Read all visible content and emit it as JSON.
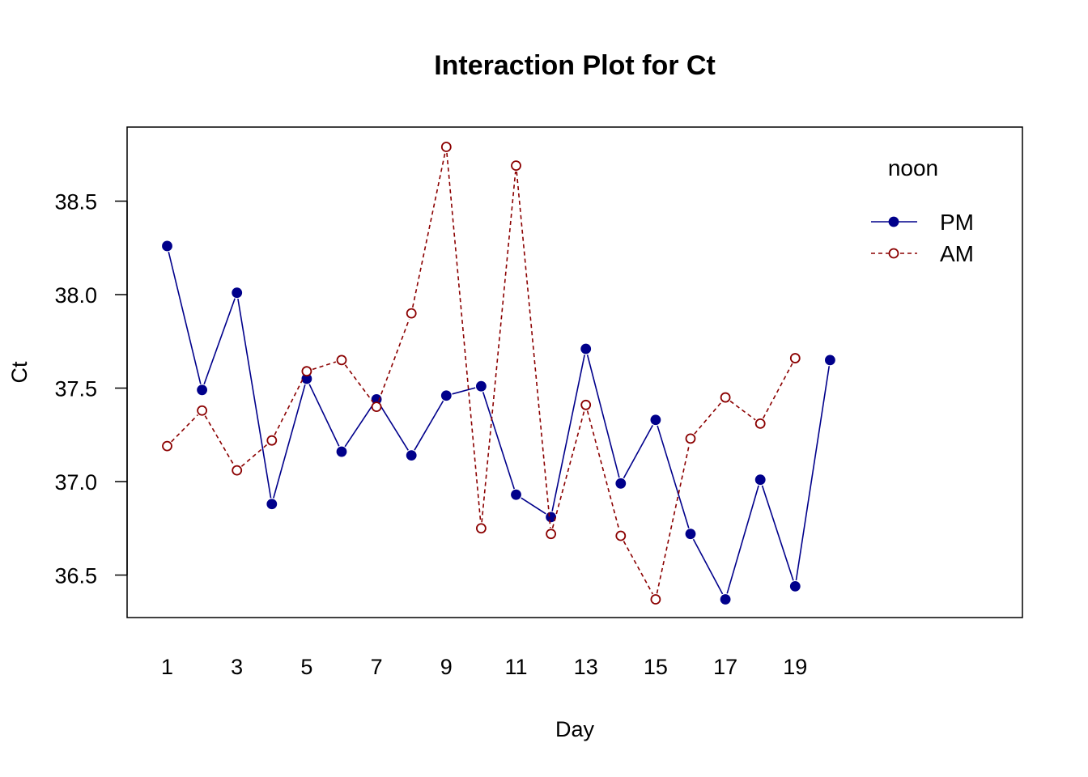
{
  "chart_data": {
    "type": "line",
    "title": "Interaction Plot for Ct",
    "xlabel": "Day",
    "ylabel": "Ct",
    "x": [
      1,
      2,
      3,
      4,
      5,
      6,
      7,
      8,
      9,
      10,
      11,
      12,
      13,
      14,
      15,
      16,
      17,
      18,
      19,
      20
    ],
    "x_tick_labels": [
      "1",
      "3",
      "5",
      "7",
      "9",
      "11",
      "13",
      "15",
      "17",
      "19"
    ],
    "y_ticks": [
      "36.5",
      "37.0",
      "37.5",
      "38.0",
      "38.5"
    ],
    "ylim": [
      36.35,
      38.85
    ],
    "xlim": [
      0,
      26
    ],
    "grid": false,
    "legend": {
      "title": "noon",
      "placement": "top-right"
    },
    "series": [
      {
        "name": "PM",
        "color": "#00008B",
        "line_style": "solid",
        "marker": "filled-circle",
        "values": [
          38.26,
          37.49,
          38.01,
          36.88,
          37.55,
          37.16,
          37.44,
          37.14,
          37.46,
          37.51,
          36.93,
          36.81,
          37.71,
          36.99,
          37.33,
          36.72,
          36.37,
          37.01,
          36.44,
          37.65
        ]
      },
      {
        "name": "AM",
        "color": "#8B0000",
        "line_style": "dashed",
        "marker": "open-circle",
        "values": [
          37.19,
          37.38,
          37.06,
          37.22,
          37.59,
          37.65,
          37.4,
          37.9,
          38.79,
          36.75,
          38.69,
          36.72,
          37.41,
          36.71,
          36.37,
          37.23,
          37.45,
          37.31,
          37.66,
          null
        ]
      }
    ]
  }
}
